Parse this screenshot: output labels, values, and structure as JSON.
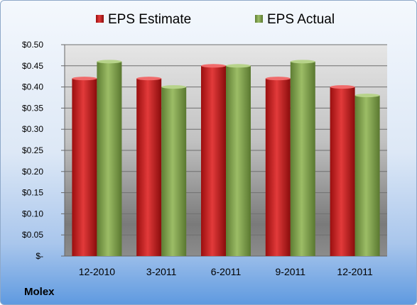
{
  "company": "Molex",
  "chart_data": {
    "type": "bar",
    "categories": [
      "12-2010",
      "3-2011",
      "6-2011",
      "9-2011",
      "12-2011"
    ],
    "series": [
      {
        "name": "EPS Estimate",
        "values": [
          0.42,
          0.42,
          0.45,
          0.42,
          0.4
        ],
        "color": "#d42a2a"
      },
      {
        "name": "EPS Actual",
        "values": [
          0.46,
          0.4,
          0.45,
          0.46,
          0.38
        ],
        "color": "#8aad55"
      }
    ],
    "ylim": [
      0,
      0.5
    ],
    "yticks": [
      0,
      0.05,
      0.1,
      0.15,
      0.2,
      0.25,
      0.3,
      0.35,
      0.4,
      0.45,
      0.5
    ],
    "ytick_labels": [
      "$-",
      "$0.05",
      "$0.10",
      "$0.15",
      "$0.20",
      "$0.25",
      "$0.30",
      "$0.35",
      "$0.40",
      "$0.45",
      "$0.50"
    ],
    "grid": true,
    "legend": "top"
  }
}
